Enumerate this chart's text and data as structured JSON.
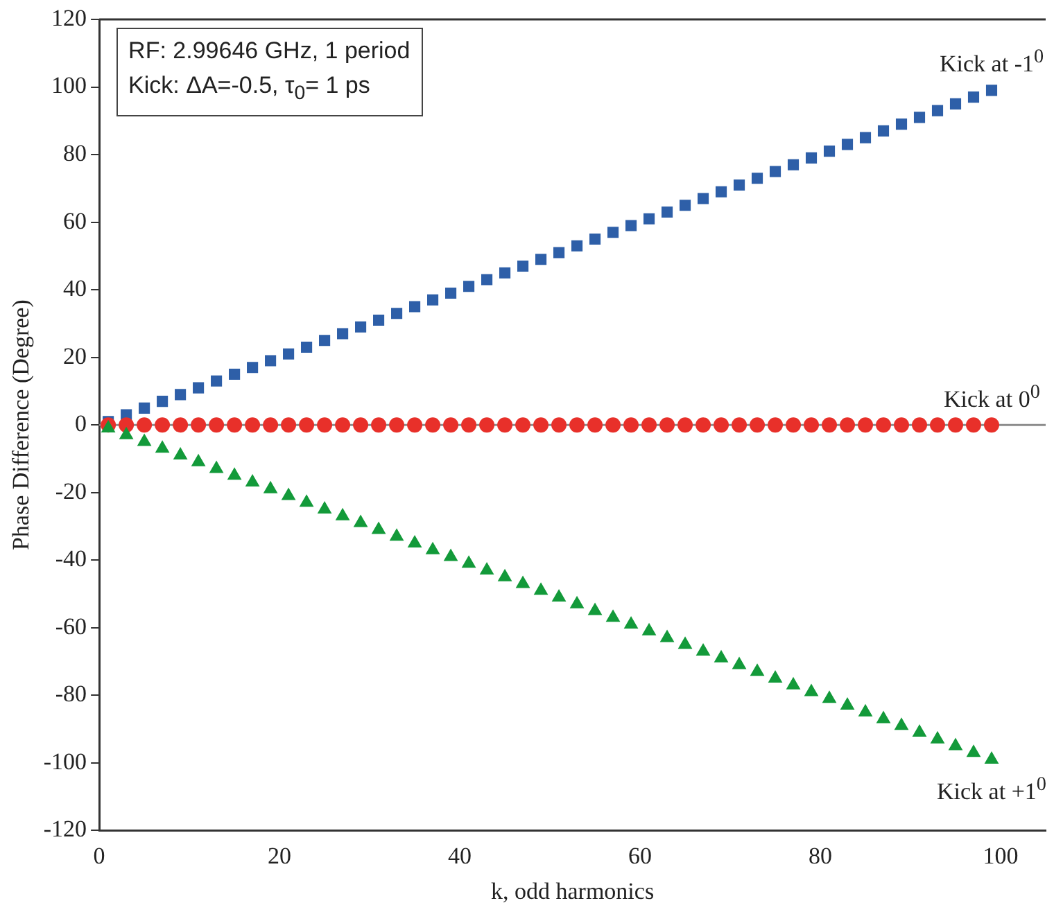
{
  "chart_data": {
    "type": "scatter",
    "xlabel": "k, odd harmonics",
    "ylabel": "Phase Difference (Degree)",
    "annotations": [
      "RF: 2.99646 GHz, 1 period",
      "Kick: ΔA=-0.5, τ$_{0}$= 1 ps"
    ],
    "x": [
      1,
      3,
      5,
      7,
      9,
      11,
      13,
      15,
      17,
      19,
      21,
      23,
      25,
      27,
      29,
      31,
      33,
      35,
      37,
      39,
      41,
      43,
      45,
      47,
      49,
      51,
      53,
      55,
      57,
      59,
      61,
      63,
      65,
      67,
      69,
      71,
      73,
      75,
      77,
      79,
      81,
      83,
      85,
      87,
      89,
      91,
      93,
      95,
      97,
      99
    ],
    "series": [
      {
        "name": "Kick at -1$^{0}$",
        "color": "#2e5fa8",
        "marker": "square",
        "values": [
          1,
          3,
          5,
          7,
          9,
          11,
          13,
          15,
          17,
          19,
          21,
          23,
          25,
          27,
          29,
          31,
          33,
          35,
          37,
          39,
          41,
          43,
          45,
          47,
          49,
          51,
          53,
          55,
          57,
          59,
          61,
          63,
          65,
          67,
          69,
          71,
          73,
          75,
          77,
          79,
          81,
          83,
          85,
          87,
          89,
          91,
          93,
          95,
          97,
          99
        ]
      },
      {
        "name": "Kick at 0$^{0}$",
        "color": "#e8302a",
        "marker": "circle",
        "values": [
          0,
          0,
          0,
          0,
          0,
          0,
          0,
          0,
          0,
          0,
          0,
          0,
          0,
          0,
          0,
          0,
          0,
          0,
          0,
          0,
          0,
          0,
          0,
          0,
          0,
          0,
          0,
          0,
          0,
          0,
          0,
          0,
          0,
          0,
          0,
          0,
          0,
          0,
          0,
          0,
          0,
          0,
          0,
          0,
          0,
          0,
          0,
          0,
          0,
          0
        ]
      },
      {
        "name": "Kick at +1$^{0}$",
        "color": "#139a3a",
        "marker": "triangle",
        "values": [
          -1,
          -3,
          -5,
          -7,
          -9,
          -11,
          -13,
          -15,
          -17,
          -19,
          -21,
          -23,
          -25,
          -27,
          -29,
          -31,
          -33,
          -35,
          -37,
          -39,
          -41,
          -43,
          -45,
          -47,
          -49,
          -51,
          -53,
          -55,
          -57,
          -59,
          -61,
          -63,
          -65,
          -67,
          -69,
          -71,
          -73,
          -75,
          -77,
          -79,
          -81,
          -83,
          -85,
          -87,
          -89,
          -91,
          -93,
          -95,
          -97,
          -99
        ]
      }
    ],
    "xlim": [
      0,
      105
    ],
    "xticks": [
      0,
      20,
      40,
      60,
      80,
      100
    ],
    "ylim": [
      -120,
      120
    ],
    "yticks": [
      -120,
      -100,
      -80,
      -60,
      -40,
      -20,
      0,
      20,
      40,
      60,
      80,
      100,
      120
    ],
    "ref_lines": [
      {
        "axis": "y",
        "value": 0,
        "color": "#8c8c8c"
      }
    ],
    "grid": false,
    "legend": false
  }
}
